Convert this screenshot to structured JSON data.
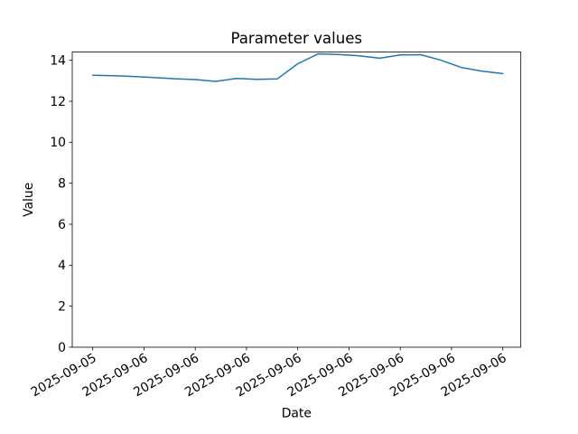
{
  "figure": {
    "background": "#ffffff",
    "axes_color": "#000000"
  },
  "chart_data": {
    "type": "line",
    "title": "Parameter values",
    "xlabel": "Date",
    "ylabel": "Value",
    "grid": false,
    "legend": "none",
    "ylim": [
      0,
      14.4
    ],
    "y_ticks": [
      0,
      2,
      4,
      6,
      8,
      10,
      12,
      14
    ],
    "x_tick_labels": [
      "2025-09-05",
      "2025-09-06",
      "2025-09-06",
      "2025-09-06",
      "2025-09-06",
      "2025-09-06",
      "2025-09-06",
      "2025-09-06",
      "2025-09-06"
    ],
    "series": [
      {
        "name": "Parameter values",
        "color": "#1f77b4",
        "values": [
          13.27,
          13.25,
          13.21,
          13.16,
          13.1,
          13.06,
          12.97,
          13.11,
          13.07,
          13.09,
          13.83,
          14.31,
          14.28,
          14.22,
          14.1,
          14.26,
          14.27,
          14.0,
          13.64,
          13.47,
          13.35
        ]
      }
    ]
  }
}
